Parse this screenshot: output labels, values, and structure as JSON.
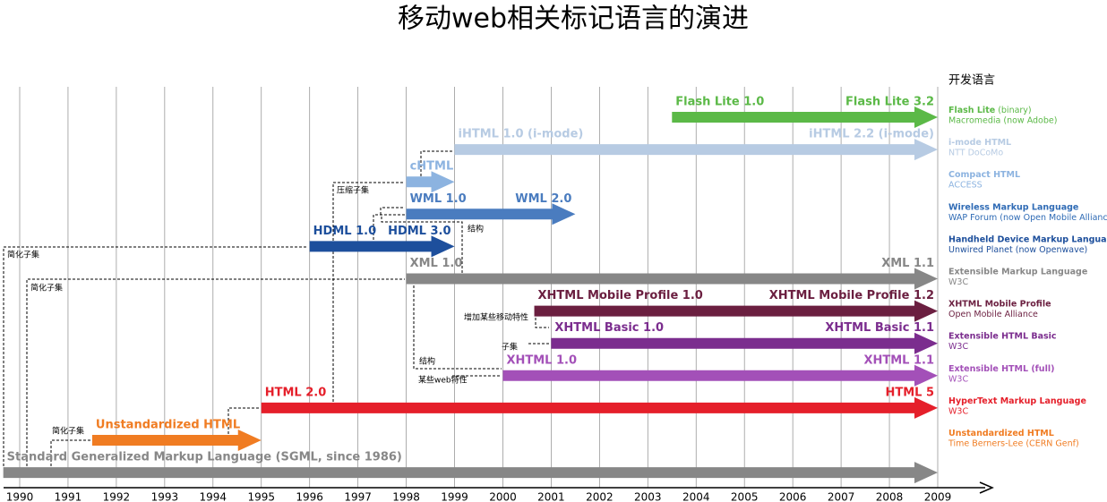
{
  "title": "移动web相关标记语言的演进",
  "legend_title": "开发语言",
  "years": [
    1990,
    1991,
    1992,
    1993,
    1994,
    1995,
    1996,
    1997,
    1998,
    1999,
    2000,
    2001,
    2002,
    2003,
    2004,
    2005,
    2006,
    2007,
    2008,
    2009
  ],
  "lanes": [
    {
      "label_start": "Flash Lite 1.0",
      "label_end": "Flash Lite 3.2",
      "color": "#5bb947",
      "start": 2003.5,
      "end": 2009
    },
    {
      "label_start": "iHTML 1.0 (i-mode)",
      "label_end": "iHTML 2.2 (i-mode)",
      "color": "#b7cbe3",
      "start": 1999,
      "end": 2009
    },
    {
      "label_start": "cHTML",
      "color": "#8cb3e0",
      "start": 1998,
      "end": 1999
    },
    {
      "label_start": "WML 1.0",
      "label_end": "WML 2.0",
      "color": "#4a7cbf",
      "start": 1998,
      "end": 2001.5
    },
    {
      "label_start": "HDML 1.0",
      "label_end": "HDML 3.0",
      "color": "#1d4f9c",
      "start": 1996,
      "end": 1999
    },
    {
      "label_start": "XML 1.0",
      "label_end": "XML 1.1",
      "color": "#878787",
      "start": 1998,
      "end": 2009
    },
    {
      "label_start": "XHTML Mobile Profile 1.0",
      "label_end": "XHTML Mobile Profile 1.2",
      "color": "#6b1f40",
      "start": 2000.65,
      "end": 2009
    },
    {
      "label_start": "XHTML Basic 1.0",
      "label_end": "XHTML Basic 1.1",
      "color": "#7b2d8e",
      "start": 2001,
      "end": 2009
    },
    {
      "label_start": "XHTML 1.0",
      "label_end": "XHTML 1.1",
      "color": "#a350b8",
      "start": 2000,
      "end": 2009
    },
    {
      "label_start": "HTML 2.0",
      "label_end": "HTML 5",
      "color": "#e51f2a",
      "start": 1995,
      "end": 2009
    },
    {
      "label_start": "Unstandardized HTML",
      "color": "#f07c22",
      "start": 1991.5,
      "end": 1995
    },
    {
      "label_start": "Standard Generalized Markup Language (SGML, since 1986)",
      "color": "#878787",
      "start": 1989.66,
      "end": 2009
    }
  ],
  "legend": [
    {
      "name": "Flash Lite",
      "note": "(binary)",
      "sub": "Macromedia (now Adobe)",
      "color": "#5bb947"
    },
    {
      "name": "i-mode HTML",
      "sub": "NTT DoCoMo",
      "color": "#b7cbe3"
    },
    {
      "name": "Compact HTML",
      "sub": "ACCESS",
      "color": "#8cb3e0"
    },
    {
      "name": "Wireless Markup Language",
      "sub": "WAP Forum (now Open Mobile Alliance)",
      "color": "#2f6bb5"
    },
    {
      "name": "Handheld Device Markup Language",
      "sub": "Unwired Planet (now Openwave)",
      "color": "#1d4f9c"
    },
    {
      "name": "Extensible Markup Language",
      "sub": "W3C",
      "color": "#878787"
    },
    {
      "name": "XHTML Mobile Profile",
      "sub": "Open Mobile Alliance",
      "color": "#6b1f40"
    },
    {
      "name": "Extensible HTML Basic",
      "sub": "W3C",
      "color": "#7b2d8e"
    },
    {
      "name": "Extensible HTML (full)",
      "sub": "W3C",
      "color": "#a350b8"
    },
    {
      "name": "HyperText Markup Language",
      "sub": "W3C",
      "color": "#e51f2a"
    },
    {
      "name": "Unstandardized HTML",
      "sub": "Time Berners-Lee (CERN Genf)",
      "color": "#f07c22"
    }
  ],
  "notes": [
    "压缩子集",
    "结构",
    "简化子集",
    "简化子集",
    "增加某些移动特性",
    "子集",
    "结构",
    "某些web特性",
    "简化子集"
  ]
}
